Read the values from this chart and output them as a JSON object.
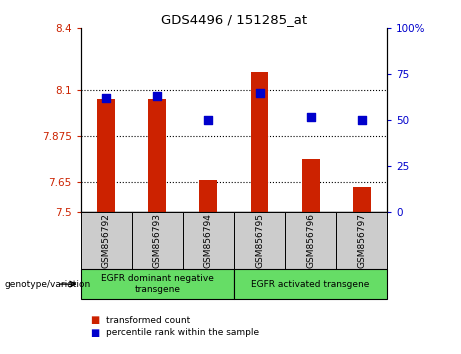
{
  "title": "GDS4496 / 151285_at",
  "samples": [
    "GSM856792",
    "GSM856793",
    "GSM856794",
    "GSM856795",
    "GSM856796",
    "GSM856797"
  ],
  "bar_values": [
    8.055,
    8.055,
    7.66,
    8.185,
    7.76,
    7.625
  ],
  "percentile_values": [
    62,
    63,
    50,
    65,
    52,
    50
  ],
  "bar_bottom": 7.5,
  "ylim_left": [
    7.5,
    8.4
  ],
  "ylim_right": [
    0,
    100
  ],
  "yticks_left": [
    7.5,
    7.65,
    7.875,
    8.1,
    8.4
  ],
  "ytick_labels_left": [
    "7.5",
    "7.65",
    "7.875",
    "8.1",
    "8.4"
  ],
  "yticks_right": [
    0,
    25,
    50,
    75,
    100
  ],
  "ytick_labels_right": [
    "0",
    "25",
    "50",
    "75",
    "100%"
  ],
  "bar_color": "#cc2200",
  "dot_color": "#0000cc",
  "groups": [
    {
      "label": "EGFR dominant negative\ntransgene",
      "color": "#66dd66"
    },
    {
      "label": "EGFR activated transgene",
      "color": "#66dd66"
    }
  ],
  "legend_items": [
    {
      "label": "transformed count",
      "color": "#cc2200"
    },
    {
      "label": "percentile rank within the sample",
      "color": "#0000cc"
    }
  ],
  "genotype_label": "genotype/variation",
  "left_tick_color": "#cc2200",
  "right_tick_color": "#0000cc",
  "bar_width": 0.35,
  "dot_size": 30,
  "sample_box_color": "#cccccc",
  "plot_bg": "#ffffff"
}
